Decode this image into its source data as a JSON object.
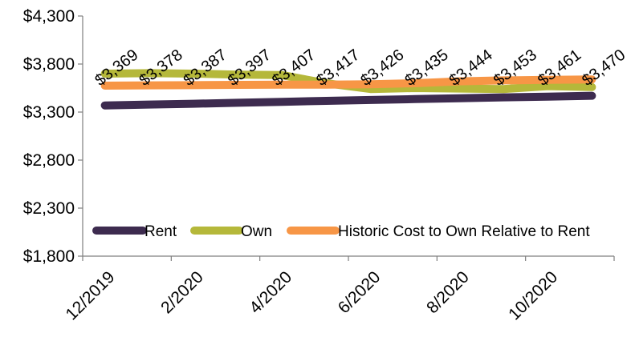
{
  "chart_data": {
    "type": "line",
    "title": "",
    "xlabel": "",
    "ylabel": "",
    "ylim": [
      1800,
      4300
    ],
    "y_ticks": [
      "$1,800",
      "$2,300",
      "$2,800",
      "$3,300",
      "$3,800",
      "$4,300"
    ],
    "y_tick_values": [
      1800,
      2300,
      2800,
      3300,
      3800,
      4300
    ],
    "x": [
      "12/2019",
      "1/2020",
      "2/2020",
      "3/2020",
      "4/2020",
      "5/2020",
      "6/2020",
      "7/2020",
      "8/2020",
      "9/2020",
      "10/2020",
      "11/2020"
    ],
    "x_tick_labels": [
      "12/2019",
      "2/2020",
      "4/2020",
      "6/2020",
      "8/2020",
      "10/2020"
    ],
    "grid": false,
    "legend_position": "bottom-inside",
    "series": [
      {
        "name": "Rent",
        "color": "#3d2b4f",
        "values": [
          3369,
          3378,
          3387,
          3397,
          3407,
          3417,
          3426,
          3435,
          3444,
          3453,
          3461,
          3470
        ],
        "data_labels": [
          "$3,369",
          "$3,378",
          "$3,387",
          "$3,397",
          "$3,407",
          "$3,417",
          "$3,426",
          "$3,435",
          "$3,444",
          "$3,453",
          "$3,461",
          "$3,470"
        ]
      },
      {
        "name": "Own",
        "color": "#b5b83a",
        "values": [
          3700,
          3705,
          3700,
          3690,
          3685,
          3600,
          3540,
          3550,
          3545,
          3540,
          3570,
          3560
        ]
      },
      {
        "name": "Historic Cost to Own Relative to Rent",
        "color": "#f79646",
        "values": [
          3575,
          3578,
          3580,
          3583,
          3585,
          3585,
          3590,
          3600,
          3620,
          3630,
          3635,
          3640
        ]
      }
    ]
  }
}
